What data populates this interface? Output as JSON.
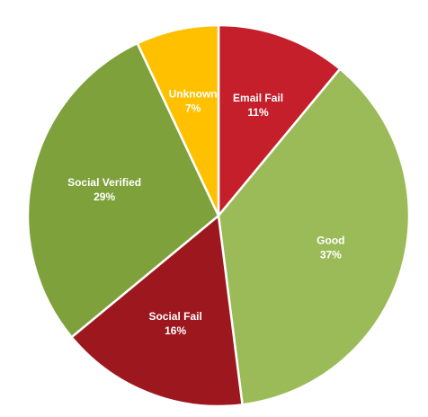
{
  "chart_data": {
    "type": "pie",
    "categories": [
      "Email Fail",
      "Good",
      "Social Fail",
      "Social Verified",
      "Unknown"
    ],
    "values": [
      11,
      37,
      16,
      29,
      7
    ],
    "value_labels": [
      "11%",
      "37%",
      "16%",
      "29%",
      "7%"
    ],
    "colors": [
      "#c41f2b",
      "#9bbb59",
      "#9c181e",
      "#7ea13b",
      "#ffc000"
    ]
  }
}
